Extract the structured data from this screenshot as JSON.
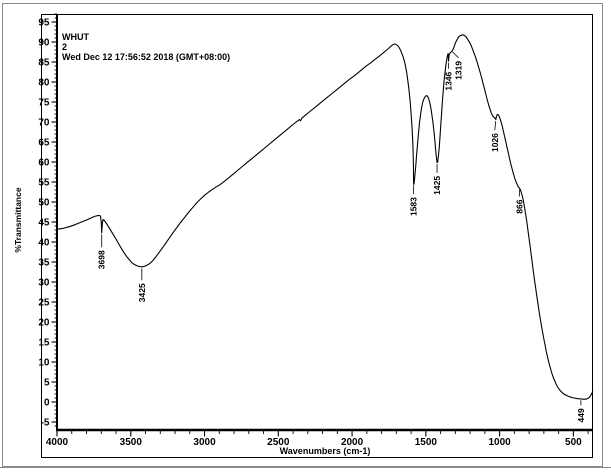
{
  "header": {
    "sample_name": "WHUT",
    "sample_number": "2",
    "timestamp": "Wed Dec 12 17:56:52 2018 (GMT+08:00)"
  },
  "colors": {
    "background": "#ffffff",
    "curve": "#000000",
    "axis": "#000000",
    "frame": "#000000",
    "outer_border": "#8a8a8a",
    "text": "#000000"
  },
  "chart_data": {
    "type": "line",
    "title": "",
    "xlabel": "Wavenumbers (cm-1)",
    "ylabel": "%Transmittance",
    "xlim": [
      4000,
      367
    ],
    "ylim": [
      -7,
      97
    ],
    "x_axis_reversed": true,
    "grid": false,
    "x_ticks": [
      4000,
      3500,
      3000,
      2500,
      2000,
      1500,
      1000,
      500
    ],
    "x_minor_step": 100,
    "y_ticks": [
      -5,
      0,
      5,
      10,
      15,
      20,
      25,
      30,
      35,
      40,
      45,
      50,
      55,
      60,
      65,
      70,
      75,
      80,
      85,
      90,
      95
    ],
    "y_minor_step": 1,
    "peak_labels": [
      {
        "text": "3698",
        "wn": 3697,
        "T": 42.3,
        "drop": 13,
        "dx": 0
      },
      {
        "text": "3425",
        "wn": 3425,
        "T": 33.8,
        "drop": 12,
        "dx": 0
      },
      {
        "text": "1583",
        "wn": 1583,
        "T": 54.6,
        "drop": 9,
        "dx": 0
      },
      {
        "text": "1425",
        "wn": 1424,
        "T": 59.9,
        "drop": 9,
        "dx": 0
      },
      {
        "text": "1346",
        "wn": 1346,
        "T": 85.2,
        "drop": 6,
        "dx": 0
      },
      {
        "text": "1319",
        "wn": 1319,
        "T": 87.9,
        "drop": 6,
        "dx": 6
      },
      {
        "text": "1026",
        "wn": 1026,
        "T": 70.6,
        "drop": 9,
        "dx": -1
      },
      {
        "text": "866",
        "wn": 866,
        "T": 53.5,
        "drop": 7,
        "dx": 0
      },
      {
        "text": "449",
        "wn": 449,
        "T": 0.8,
        "drop": 5,
        "dx": 0
      }
    ],
    "series": [
      {
        "name": "2",
        "points": [
          [
            4000,
            43.2
          ],
          [
            3960,
            43.4
          ],
          [
            3920,
            43.8
          ],
          [
            3880,
            44.3
          ],
          [
            3840,
            44.9
          ],
          [
            3800,
            45.5
          ],
          [
            3770,
            46.0
          ],
          [
            3745,
            46.4
          ],
          [
            3725,
            46.6
          ],
          [
            3712,
            46.6
          ],
          [
            3705,
            46.5
          ],
          [
            3700,
            44.8
          ],
          [
            3697,
            42.3
          ],
          [
            3693,
            44.6
          ],
          [
            3688,
            45.6
          ],
          [
            3682,
            45.5
          ],
          [
            3668,
            44.8
          ],
          [
            3652,
            43.9
          ],
          [
            3634,
            42.8
          ],
          [
            3616,
            41.7
          ],
          [
            3598,
            40.6
          ],
          [
            3580,
            39.4
          ],
          [
            3562,
            38.3
          ],
          [
            3544,
            37.2
          ],
          [
            3526,
            36.3
          ],
          [
            3508,
            35.5
          ],
          [
            3492,
            34.8
          ],
          [
            3476,
            34.4
          ],
          [
            3460,
            34.1
          ],
          [
            3444,
            33.9
          ],
          [
            3425,
            33.8
          ],
          [
            3408,
            33.9
          ],
          [
            3390,
            34.2
          ],
          [
            3372,
            34.6
          ],
          [
            3354,
            35.2
          ],
          [
            3336,
            36.0
          ],
          [
            3318,
            36.9
          ],
          [
            3300,
            37.8
          ],
          [
            3272,
            39.2
          ],
          [
            3244,
            40.7
          ],
          [
            3216,
            42.2
          ],
          [
            3188,
            43.6
          ],
          [
            3160,
            45.0
          ],
          [
            3132,
            46.3
          ],
          [
            3104,
            47.6
          ],
          [
            3076,
            48.8
          ],
          [
            3048,
            50.0
          ],
          [
            3020,
            51.0
          ],
          [
            2996,
            51.8
          ],
          [
            2972,
            52.5
          ],
          [
            2948,
            53.1
          ],
          [
            2924,
            53.7
          ],
          [
            2900,
            54.2
          ],
          [
            2864,
            55.2
          ],
          [
            2828,
            56.3
          ],
          [
            2792,
            57.4
          ],
          [
            2756,
            58.5
          ],
          [
            2720,
            59.6
          ],
          [
            2684,
            60.7
          ],
          [
            2648,
            61.8
          ],
          [
            2612,
            62.9
          ],
          [
            2576,
            64.0
          ],
          [
            2540,
            65.1
          ],
          [
            2504,
            66.2
          ],
          [
            2468,
            67.3
          ],
          [
            2432,
            68.4
          ],
          [
            2396,
            69.5
          ],
          [
            2368,
            70.3
          ],
          [
            2356,
            70.6
          ],
          [
            2349,
            70.3
          ],
          [
            2342,
            70.9
          ],
          [
            2320,
            71.6
          ],
          [
            2290,
            72.5
          ],
          [
            2260,
            73.4
          ],
          [
            2230,
            74.3
          ],
          [
            2200,
            75.2
          ],
          [
            2170,
            76.1
          ],
          [
            2140,
            77.0
          ],
          [
            2110,
            77.9
          ],
          [
            2080,
            78.8
          ],
          [
            2050,
            79.7
          ],
          [
            2020,
            80.6
          ],
          [
            1990,
            81.4
          ],
          [
            1960,
            82.3
          ],
          [
            1930,
            83.2
          ],
          [
            1900,
            84.1
          ],
          [
            1870,
            84.9
          ],
          [
            1840,
            85.8
          ],
          [
            1810,
            86.6
          ],
          [
            1785,
            87.4
          ],
          [
            1765,
            88.0
          ],
          [
            1750,
            88.5
          ],
          [
            1738,
            88.9
          ],
          [
            1728,
            89.2
          ],
          [
            1718,
            89.4
          ],
          [
            1710,
            89.5
          ],
          [
            1702,
            89.4
          ],
          [
            1694,
            89.2
          ],
          [
            1686,
            88.9
          ],
          [
            1678,
            88.4
          ],
          [
            1670,
            87.8
          ],
          [
            1662,
            87.1
          ],
          [
            1654,
            86.3
          ],
          [
            1646,
            85.3
          ],
          [
            1638,
            84.0
          ],
          [
            1630,
            82.4
          ],
          [
            1622,
            80.4
          ],
          [
            1614,
            78.0
          ],
          [
            1606,
            75.0
          ],
          [
            1599,
            71.8
          ],
          [
            1593,
            68.3
          ],
          [
            1588,
            64.4
          ],
          [
            1584,
            59.8
          ],
          [
            1583,
            54.6
          ],
          [
            1581,
            54.4
          ],
          [
            1578,
            55.2
          ],
          [
            1574,
            56.7
          ],
          [
            1569,
            58.8
          ],
          [
            1563,
            61.5
          ],
          [
            1556,
            64.6
          ],
          [
            1549,
            67.5
          ],
          [
            1542,
            70.0
          ],
          [
            1535,
            72.1
          ],
          [
            1528,
            73.7
          ],
          [
            1521,
            74.9
          ],
          [
            1514,
            75.7
          ],
          [
            1507,
            76.2
          ],
          [
            1500,
            76.5
          ],
          [
            1493,
            76.6
          ],
          [
            1486,
            76.3
          ],
          [
            1479,
            75.6
          ],
          [
            1472,
            74.6
          ],
          [
            1465,
            73.3
          ],
          [
            1458,
            71.6
          ],
          [
            1451,
            69.6
          ],
          [
            1444,
            67.3
          ],
          [
            1438,
            65.0
          ],
          [
            1433,
            62.9
          ],
          [
            1429,
            61.4
          ],
          [
            1426,
            60.3
          ],
          [
            1424,
            59.9
          ],
          [
            1421,
            59.9
          ],
          [
            1418,
            60.5
          ],
          [
            1414,
            61.7
          ],
          [
            1409,
            63.8
          ],
          [
            1404,
            66.3
          ],
          [
            1399,
            69.0
          ],
          [
            1394,
            71.8
          ],
          [
            1389,
            74.5
          ],
          [
            1384,
            77.0
          ],
          [
            1379,
            79.2
          ],
          [
            1374,
            81.1
          ],
          [
            1369,
            82.8
          ],
          [
            1364,
            84.2
          ],
          [
            1359,
            85.4
          ],
          [
            1355,
            86.2
          ],
          [
            1352,
            86.8
          ],
          [
            1349,
            87.1
          ],
          [
            1347,
            86.0
          ],
          [
            1346,
            85.2
          ],
          [
            1345,
            85.8
          ],
          [
            1343,
            86.6
          ],
          [
            1340,
            87.0
          ],
          [
            1335,
            87.3
          ],
          [
            1329,
            87.5
          ],
          [
            1323,
            87.7
          ],
          [
            1319,
            87.9
          ],
          [
            1314,
            88.3
          ],
          [
            1308,
            88.9
          ],
          [
            1301,
            89.6
          ],
          [
            1294,
            90.2
          ],
          [
            1287,
            90.7
          ],
          [
            1280,
            91.1
          ],
          [
            1273,
            91.4
          ],
          [
            1266,
            91.6
          ],
          [
            1258,
            91.7
          ],
          [
            1250,
            91.8
          ],
          [
            1242,
            91.7
          ],
          [
            1234,
            91.5
          ],
          [
            1226,
            91.2
          ],
          [
            1218,
            90.8
          ],
          [
            1210,
            90.3
          ],
          [
            1201,
            89.7
          ],
          [
            1192,
            89.0
          ],
          [
            1183,
            88.2
          ],
          [
            1174,
            87.3
          ],
          [
            1165,
            86.4
          ],
          [
            1156,
            85.4
          ],
          [
            1147,
            84.3
          ],
          [
            1138,
            83.2
          ],
          [
            1129,
            82.0
          ],
          [
            1120,
            80.8
          ],
          [
            1111,
            79.5
          ],
          [
            1102,
            78.2
          ],
          [
            1093,
            76.9
          ],
          [
            1084,
            75.6
          ],
          [
            1075,
            74.4
          ],
          [
            1066,
            73.3
          ],
          [
            1058,
            72.4
          ],
          [
            1051,
            71.8
          ],
          [
            1045,
            71.4
          ],
          [
            1039,
            71.2
          ],
          [
            1033,
            71.0
          ],
          [
            1028,
            70.8
          ],
          [
            1026,
            70.6
          ],
          [
            1024,
            71.0
          ],
          [
            1021,
            71.4
          ],
          [
            1017,
            71.8
          ],
          [
            1012,
            71.9
          ],
          [
            1007,
            71.7
          ],
          [
            1002,
            71.3
          ],
          [
            996,
            70.7
          ],
          [
            989,
            69.9
          ],
          [
            982,
            68.9
          ],
          [
            975,
            67.8
          ],
          [
            968,
            66.7
          ],
          [
            960,
            65.4
          ],
          [
            951,
            63.9
          ],
          [
            942,
            62.4
          ],
          [
            933,
            60.9
          ],
          [
            924,
            59.5
          ],
          [
            915,
            58.2
          ],
          [
            906,
            57.0
          ],
          [
            897,
            55.9
          ],
          [
            888,
            55.0
          ],
          [
            880,
            54.3
          ],
          [
            873,
            53.8
          ],
          [
            868,
            53.6
          ],
          [
            864,
            53.4
          ],
          [
            859,
            53.0
          ],
          [
            853,
            52.4
          ],
          [
            846,
            51.5
          ],
          [
            839,
            50.3
          ],
          [
            832,
            48.9
          ],
          [
            825,
            47.3
          ],
          [
            818,
            45.6
          ],
          [
            811,
            43.8
          ],
          [
            804,
            41.9
          ],
          [
            796,
            39.7
          ],
          [
            788,
            37.4
          ],
          [
            780,
            35.1
          ],
          [
            772,
            32.9
          ],
          [
            764,
            30.7
          ],
          [
            756,
            28.6
          ],
          [
            748,
            26.5
          ],
          [
            740,
            24.5
          ],
          [
            732,
            22.6
          ],
          [
            724,
            20.8
          ],
          [
            716,
            19.0
          ],
          [
            708,
            17.3
          ],
          [
            700,
            15.7
          ],
          [
            692,
            14.2
          ],
          [
            684,
            12.7
          ],
          [
            676,
            11.4
          ],
          [
            668,
            10.1
          ],
          [
            660,
            9.0
          ],
          [
            652,
            7.9
          ],
          [
            644,
            7.0
          ],
          [
            636,
            6.1
          ],
          [
            628,
            5.4
          ],
          [
            620,
            4.7
          ],
          [
            612,
            4.1
          ],
          [
            604,
            3.6
          ],
          [
            596,
            3.2
          ],
          [
            588,
            2.8
          ],
          [
            580,
            2.5
          ],
          [
            572,
            2.2
          ],
          [
            564,
            2.0
          ],
          [
            556,
            1.8
          ],
          [
            548,
            1.7
          ],
          [
            540,
            1.5
          ],
          [
            532,
            1.4
          ],
          [
            524,
            1.3
          ],
          [
            516,
            1.2
          ],
          [
            508,
            1.1
          ],
          [
            500,
            1.0
          ],
          [
            492,
            1.0
          ],
          [
            484,
            0.9
          ],
          [
            476,
            0.9
          ],
          [
            468,
            0.8
          ],
          [
            460,
            0.8
          ],
          [
            452,
            0.8
          ],
          [
            449,
            0.8
          ],
          [
            444,
            0.7
          ],
          [
            438,
            0.7
          ],
          [
            432,
            0.7
          ],
          [
            426,
            0.7
          ],
          [
            420,
            0.7
          ],
          [
            414,
            0.7
          ],
          [
            408,
            0.8
          ],
          [
            402,
            0.9
          ],
          [
            396,
            1.0
          ],
          [
            390,
            1.2
          ],
          [
            385,
            1.5
          ],
          [
            380,
            1.8
          ],
          [
            376,
            2.1
          ],
          [
            372,
            2.4
          ],
          [
            369,
            2.6
          ]
        ]
      }
    ]
  }
}
